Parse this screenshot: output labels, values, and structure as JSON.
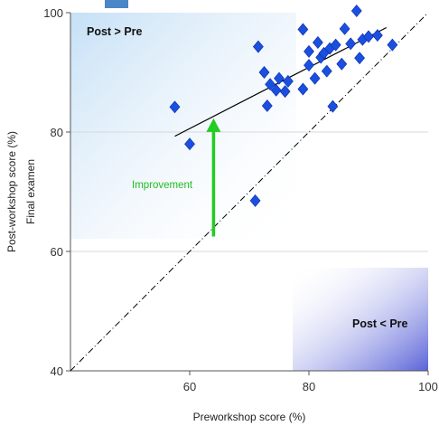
{
  "chart_data": {
    "type": "scatter",
    "xlabel": "Preworkshop score (%)",
    "ylabel": "Post-workshop score (%)",
    "ylabel_secondary": "Final examen",
    "xlim": [
      40,
      100
    ],
    "ylim": [
      40,
      100
    ],
    "xticks": [
      60,
      80,
      100
    ],
    "yticks": [
      40,
      60,
      80,
      100
    ],
    "grid": "horizontal",
    "marker_color": "#1a4fe0",
    "trend_color": "#000000",
    "identity_color": "#000000",
    "arrow_color": "#22cc22",
    "series": [
      {
        "marker": "diamond",
        "points": [
          [
            57.5,
            84.2
          ],
          [
            60,
            78
          ],
          [
            71,
            68.5
          ],
          [
            71.5,
            94.3
          ],
          [
            72.5,
            90
          ],
          [
            73,
            84.4
          ],
          [
            73.5,
            88
          ],
          [
            74.5,
            87
          ],
          [
            75,
            89
          ],
          [
            76,
            86.8
          ],
          [
            76.5,
            88.5
          ],
          [
            79,
            97.2
          ],
          [
            79,
            87.2
          ],
          [
            80,
            91.2
          ],
          [
            80,
            93.5
          ],
          [
            81,
            89
          ],
          [
            81.5,
            95
          ],
          [
            82,
            92.5
          ],
          [
            82.5,
            93.2
          ],
          [
            83,
            90.2
          ],
          [
            83.5,
            94
          ],
          [
            84,
            84.3
          ],
          [
            84.5,
            94.6
          ],
          [
            85.5,
            91.4
          ],
          [
            86,
            97.3
          ],
          [
            87,
            94.8
          ],
          [
            88,
            100.3
          ],
          [
            88.5,
            92.4
          ],
          [
            89,
            95.5
          ],
          [
            90,
            96
          ],
          [
            91.5,
            96.2
          ],
          [
            94,
            94.6
          ]
        ]
      }
    ],
    "trend_line": {
      "x": [
        57.5,
        93
      ],
      "y": [
        79.3,
        97.5
      ]
    },
    "identity_line": {
      "x": [
        40,
        100
      ],
      "y": [
        40,
        100
      ]
    },
    "annotations": {
      "upper_region": "Post > Pre",
      "lower_region": "Post < Pre",
      "arrow_label": "Improvement",
      "arrow": {
        "x": 64,
        "y_from": 62.5,
        "y_to": 82.3
      }
    }
  }
}
